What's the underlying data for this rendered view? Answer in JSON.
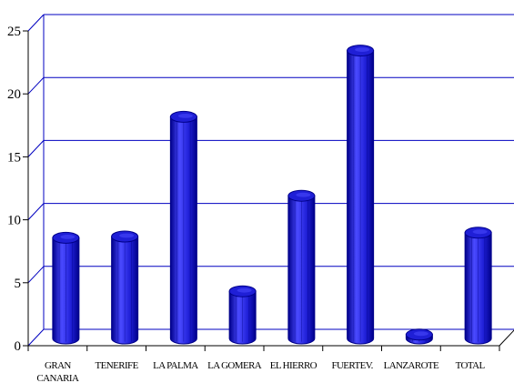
{
  "chart_data": {
    "type": "bar",
    "categories": [
      "GRAN CANARIA",
      "TENERIFE",
      "LA PALMA",
      "LA GOMERA",
      "EL HIERRO",
      "FUERTEV.",
      "LANZAROTE",
      "TOTAL"
    ],
    "category_lines": [
      [
        "GRAN",
        "CANARIA"
      ],
      [
        "TENERIFE"
      ],
      [
        "LA PALMA"
      ],
      [
        "LA GOMERA"
      ],
      [
        "EL HIERRO"
      ],
      [
        "FUERTEV."
      ],
      [
        "LANZAROTE"
      ],
      [
        "TOTAL"
      ]
    ],
    "values": [
      7.9,
      8.0,
      17.4,
      3.7,
      11.2,
      22.6,
      0.3,
      8.3
    ],
    "yticks": [
      0,
      5,
      10,
      15,
      20,
      25
    ],
    "ylim": [
      0,
      25
    ],
    "title": "",
    "xlabel": "",
    "ylabel": "",
    "grid": true,
    "style": "3d-cylinder",
    "colors": {
      "bar": "#1f1fd6",
      "bar_dark": "#00008a",
      "bar_light": "#4a4aff",
      "grid": "#0000c0",
      "axis": "#000000"
    }
  }
}
